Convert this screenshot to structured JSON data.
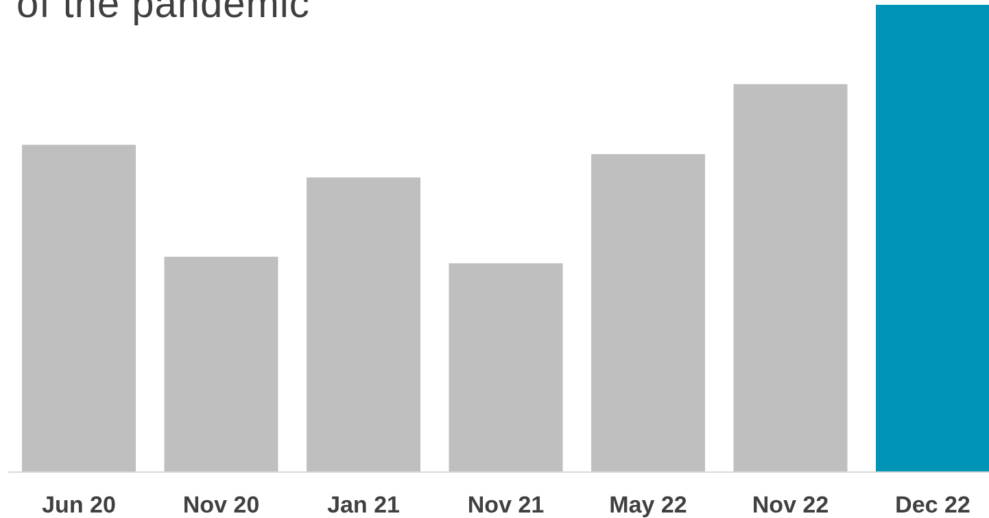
{
  "chart_data": {
    "type": "bar",
    "title": "of the pandemic",
    "categories": [
      "Jun 20",
      "Nov 20",
      "Jan 21",
      "Nov 21",
      "May 22",
      "Nov 22",
      "Dec 22"
    ],
    "values": [
      70,
      46,
      63,
      44.6,
      68,
      83,
      100
    ],
    "highlight_index": 6,
    "colors": {
      "bar": "#bfbfbf",
      "highlight": "#0095b6",
      "axis": "#d9d9d9"
    },
    "ylim": [
      0,
      100
    ],
    "grid": false
  }
}
